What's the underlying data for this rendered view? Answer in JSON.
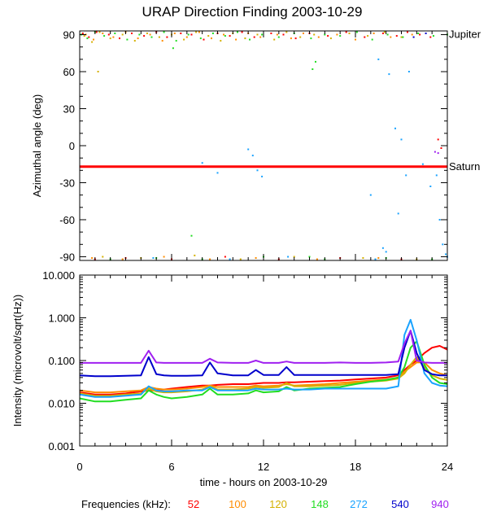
{
  "title": "URAP Direction Finding  2003-10-29",
  "x_axis": {
    "label": "time - hours on 2003-10-29",
    "ticks": [
      "0",
      "6",
      "12",
      "18",
      "24"
    ],
    "range": [
      0,
      24
    ]
  },
  "legend": {
    "label": "Frequencies (kHz):",
    "items": [
      {
        "label": "52",
        "color": "#ff0000"
      },
      {
        "label": "100",
        "color": "#ff8c00"
      },
      {
        "label": "120",
        "color": "#d4b000"
      },
      {
        "label": "148",
        "color": "#22dd22"
      },
      {
        "label": "272",
        "color": "#1aa3ff"
      },
      {
        "label": "540",
        "color": "#0000cc"
      },
      {
        "label": "940",
        "color": "#a020f0"
      }
    ]
  },
  "chart_data": [
    {
      "type": "scatter",
      "ylabel": "Azimuthal angle (deg)",
      "ylim": [
        -93,
        93
      ],
      "y_ticks": [
        "90",
        "60",
        "30",
        "0",
        "-30",
        "-60",
        "-90"
      ],
      "reference_lines": [
        {
          "label": "Jupiter",
          "y": 90,
          "color": "#000000"
        },
        {
          "label": "Saturn",
          "y": -17,
          "color": "#ff0000"
        }
      ],
      "series": [
        {
          "name": "52",
          "color": "#ff0000",
          "points": [
            [
              0.2,
              91
            ],
            [
              0.6,
              88
            ],
            [
              1.1,
              92
            ],
            [
              1.9,
              90
            ],
            [
              2.6,
              87
            ],
            [
              3.4,
              91
            ],
            [
              4.2,
              89
            ],
            [
              5.0,
              92
            ],
            [
              5.7,
              88
            ],
            [
              6.6,
              91
            ],
            [
              7.3,
              90
            ],
            [
              8.1,
              86
            ],
            [
              9.0,
              91
            ],
            [
              9.8,
              89
            ],
            [
              10.6,
              92
            ],
            [
              11.4,
              88
            ],
            [
              12.5,
              91
            ],
            [
              13.3,
              90
            ],
            [
              14.1,
              87
            ],
            [
              15.0,
              91
            ],
            [
              16.2,
              89
            ],
            [
              17.4,
              92
            ],
            [
              18.6,
              88
            ],
            [
              19.8,
              91
            ],
            [
              20.7,
              89
            ],
            [
              21.4,
              92
            ],
            [
              22.2,
              90
            ],
            [
              22.9,
              88
            ],
            [
              23.4,
              5
            ],
            [
              23.6,
              -2
            ],
            [
              1.0,
              -92
            ],
            [
              3.0,
              -91
            ],
            [
              6.0,
              -92
            ],
            [
              9.5,
              -90
            ],
            [
              13.0,
              -92
            ],
            [
              17.0,
              -91
            ],
            [
              21.0,
              -92
            ]
          ]
        },
        {
          "name": "100",
          "color": "#ff8c00",
          "points": [
            [
              0.4,
              90
            ],
            [
              0.9,
              86
            ],
            [
              1.5,
              91
            ],
            [
              2.2,
              88
            ],
            [
              3.0,
              92
            ],
            [
              3.8,
              87
            ],
            [
              4.6,
              90
            ],
            [
              5.4,
              85
            ],
            [
              6.2,
              91
            ],
            [
              7.0,
              88
            ],
            [
              7.8,
              92
            ],
            [
              8.6,
              87
            ],
            [
              9.4,
              90
            ],
            [
              10.2,
              86
            ],
            [
              11.0,
              91
            ],
            [
              11.8,
              88
            ],
            [
              12.9,
              90
            ],
            [
              13.8,
              87
            ],
            [
              14.6,
              91
            ],
            [
              15.6,
              88
            ],
            [
              16.8,
              90
            ],
            [
              18.0,
              86
            ],
            [
              19.2,
              91
            ],
            [
              20.3,
              88
            ],
            [
              21.7,
              90
            ],
            [
              0.8,
              -91
            ],
            [
              2.8,
              -92
            ],
            [
              5.5,
              -90
            ],
            [
              8.5,
              -92
            ],
            [
              11.5,
              -91
            ],
            [
              15.5,
              -92
            ],
            [
              19.5,
              -91
            ]
          ]
        },
        {
          "name": "120",
          "color": "#d4b000",
          "points": [
            [
              0.3,
              89
            ],
            [
              0.8,
              84
            ],
            [
              1.3,
              92
            ],
            [
              2.0,
              87
            ],
            [
              2.8,
              90
            ],
            [
              3.6,
              85
            ],
            [
              4.4,
              91
            ],
            [
              5.2,
              88
            ],
            [
              6.0,
              90
            ],
            [
              6.8,
              86
            ],
            [
              7.6,
              92
            ],
            [
              8.4,
              89
            ],
            [
              9.2,
              85
            ],
            [
              10.0,
              91
            ],
            [
              10.8,
              87
            ],
            [
              11.6,
              90
            ],
            [
              12.7,
              86
            ],
            [
              13.5,
              92
            ],
            [
              14.4,
              88
            ],
            [
              15.3,
              90
            ],
            [
              16.4,
              87
            ],
            [
              17.6,
              91
            ],
            [
              18.8,
              89
            ],
            [
              19.9,
              92
            ],
            [
              21.0,
              88
            ],
            [
              1.2,
              60
            ],
            [
              1.5,
              -90
            ],
            [
              4.0,
              -91
            ],
            [
              7.5,
              -89
            ],
            [
              10.5,
              -92
            ],
            [
              14.0,
              -90
            ],
            [
              18.5,
              -91
            ],
            [
              22.0,
              -92
            ]
          ]
        },
        {
          "name": "148",
          "color": "#22dd22",
          "points": [
            [
              0.1,
              90
            ],
            [
              0.5,
              87
            ],
            [
              1.0,
              92
            ],
            [
              1.6,
              89
            ],
            [
              2.3,
              91
            ],
            [
              3.1,
              86
            ],
            [
              3.9,
              90
            ],
            [
              4.7,
              88
            ],
            [
              5.5,
              92
            ],
            [
              6.3,
              85
            ],
            [
              7.1,
              90
            ],
            [
              7.9,
              87
            ],
            [
              8.7,
              91
            ],
            [
              9.5,
              89
            ],
            [
              10.3,
              92
            ],
            [
              11.1,
              86
            ],
            [
              11.9,
              90
            ],
            [
              13.0,
              88
            ],
            [
              14.0,
              91
            ],
            [
              15.1,
              87
            ],
            [
              16.0,
              90
            ],
            [
              17.0,
              89
            ],
            [
              18.1,
              92
            ],
            [
              19.1,
              86
            ],
            [
              20.1,
              90
            ],
            [
              21.1,
              88
            ],
            [
              22.1,
              91
            ],
            [
              23.1,
              89
            ],
            [
              24.0,
              90
            ],
            [
              6.1,
              79
            ],
            [
              7.3,
              -73
            ],
            [
              15.0,
              -90
            ],
            [
              15.2,
              62
            ],
            [
              15.4,
              68
            ],
            [
              2.0,
              -92
            ],
            [
              5.0,
              -91
            ],
            [
              8.0,
              -92
            ],
            [
              12.0,
              -90
            ],
            [
              16.0,
              -92
            ],
            [
              20.0,
              -91
            ],
            [
              23.0,
              -92
            ]
          ]
        },
        {
          "name": "272",
          "color": "#1aa3ff",
          "points": [
            [
              11.0,
              -3
            ],
            [
              11.3,
              -8
            ],
            [
              11.6,
              -20
            ],
            [
              11.9,
              -25
            ],
            [
              8.0,
              -14
            ],
            [
              9.0,
              -22
            ],
            [
              19.5,
              70
            ],
            [
              20.2,
              58
            ],
            [
              20.6,
              14
            ],
            [
              21.0,
              5
            ],
            [
              21.3,
              -24
            ],
            [
              22.4,
              -15
            ],
            [
              19.0,
              -40
            ],
            [
              20.8,
              -55
            ],
            [
              22.9,
              -33
            ],
            [
              23.3,
              -24
            ],
            [
              23.5,
              -60
            ],
            [
              23.7,
              -80
            ],
            [
              19.8,
              -83
            ],
            [
              20.0,
              -86
            ],
            [
              23.9,
              -88
            ],
            [
              24.0,
              -90
            ],
            [
              21.5,
              60
            ],
            [
              4.8,
              -91
            ],
            [
              9.8,
              -92
            ],
            [
              13.6,
              -90
            ],
            [
              19.3,
              -92
            ]
          ]
        },
        {
          "name": "540",
          "color": "#0000cc",
          "points": [
            [
              21.8,
              88
            ],
            [
              22.6,
              91
            ]
          ]
        },
        {
          "name": "940",
          "color": "#a020f0",
          "points": [
            [
              23.2,
              -5
            ],
            [
              23.4,
              -6
            ]
          ]
        }
      ]
    },
    {
      "type": "line",
      "ylabel": "Intensity (microvolt/sqrt(Hz))",
      "scale": "log",
      "ylim": [
        0.001,
        10
      ],
      "y_ticks": [
        "10.000",
        "1.000",
        "0.100",
        "0.010",
        "0.001"
      ],
      "x": [
        0,
        1,
        2,
        3,
        4,
        4.5,
        5,
        5.5,
        6,
        7,
        8,
        8.5,
        9,
        10,
        11,
        11.5,
        12,
        13,
        13.5,
        14,
        15,
        16,
        17,
        18,
        19,
        20,
        20.8,
        21.2,
        21.6,
        22,
        22.5,
        23,
        23.5,
        24
      ],
      "series": [
        {
          "name": "52",
          "values": [
            0.018,
            0.016,
            0.016,
            0.017,
            0.019,
            0.02,
            0.02,
            0.021,
            0.022,
            0.024,
            0.026,
            0.026,
            0.027,
            0.028,
            0.028,
            0.029,
            0.03,
            0.03,
            0.031,
            0.031,
            0.032,
            0.033,
            0.034,
            0.036,
            0.038,
            0.04,
            0.045,
            0.06,
            0.08,
            0.1,
            0.15,
            0.2,
            0.22,
            0.18
          ]
        },
        {
          "name": "100",
          "values": [
            0.02,
            0.018,
            0.018,
            0.019,
            0.02,
            0.024,
            0.022,
            0.021,
            0.021,
            0.022,
            0.024,
            0.026,
            0.024,
            0.024,
            0.024,
            0.026,
            0.025,
            0.026,
            0.028,
            0.026,
            0.027,
            0.028,
            0.03,
            0.032,
            0.034,
            0.036,
            0.04,
            0.055,
            0.07,
            0.09,
            0.09,
            0.06,
            0.05,
            0.045
          ]
        },
        {
          "name": "120",
          "values": [
            0.017,
            0.015,
            0.015,
            0.016,
            0.017,
            0.022,
            0.019,
            0.018,
            0.018,
            0.019,
            0.021,
            0.025,
            0.021,
            0.021,
            0.022,
            0.024,
            0.023,
            0.024,
            0.03,
            0.025,
            0.025,
            0.026,
            0.027,
            0.03,
            0.032,
            0.034,
            0.038,
            0.05,
            0.08,
            0.12,
            0.07,
            0.045,
            0.038,
            0.035
          ]
        },
        {
          "name": "148",
          "values": [
            0.013,
            0.011,
            0.011,
            0.012,
            0.013,
            0.02,
            0.016,
            0.014,
            0.013,
            0.014,
            0.016,
            0.022,
            0.016,
            0.016,
            0.017,
            0.02,
            0.018,
            0.019,
            0.024,
            0.02,
            0.022,
            0.023,
            0.024,
            0.028,
            0.032,
            0.035,
            0.04,
            0.07,
            0.2,
            0.28,
            0.08,
            0.04,
            0.03,
            0.028
          ]
        },
        {
          "name": "272",
          "values": [
            0.016,
            0.014,
            0.014,
            0.015,
            0.016,
            0.025,
            0.02,
            0.019,
            0.019,
            0.02,
            0.02,
            0.024,
            0.02,
            0.02,
            0.02,
            0.022,
            0.021,
            0.021,
            0.022,
            0.021,
            0.021,
            0.022,
            0.022,
            0.022,
            0.022,
            0.022,
            0.025,
            0.4,
            0.9,
            0.3,
            0.05,
            0.03,
            0.026,
            0.025
          ]
        },
        {
          "name": "540",
          "values": [
            0.045,
            0.043,
            0.043,
            0.044,
            0.045,
            0.12,
            0.048,
            0.045,
            0.044,
            0.044,
            0.045,
            0.09,
            0.05,
            0.045,
            0.045,
            0.06,
            0.046,
            0.046,
            0.07,
            0.046,
            0.046,
            0.046,
            0.046,
            0.046,
            0.046,
            0.046,
            0.048,
            0.2,
            0.5,
            0.15,
            0.06,
            0.048,
            0.045,
            0.045
          ]
        },
        {
          "name": "940",
          "values": [
            0.088,
            0.088,
            0.088,
            0.088,
            0.088,
            0.17,
            0.09,
            0.088,
            0.088,
            0.088,
            0.088,
            0.11,
            0.09,
            0.088,
            0.088,
            0.1,
            0.088,
            0.088,
            0.095,
            0.088,
            0.088,
            0.088,
            0.09,
            0.088,
            0.088,
            0.09,
            0.095,
            0.25,
            0.5,
            0.1,
            0.09,
            0.088,
            0.088,
            0.088
          ]
        }
      ]
    }
  ]
}
